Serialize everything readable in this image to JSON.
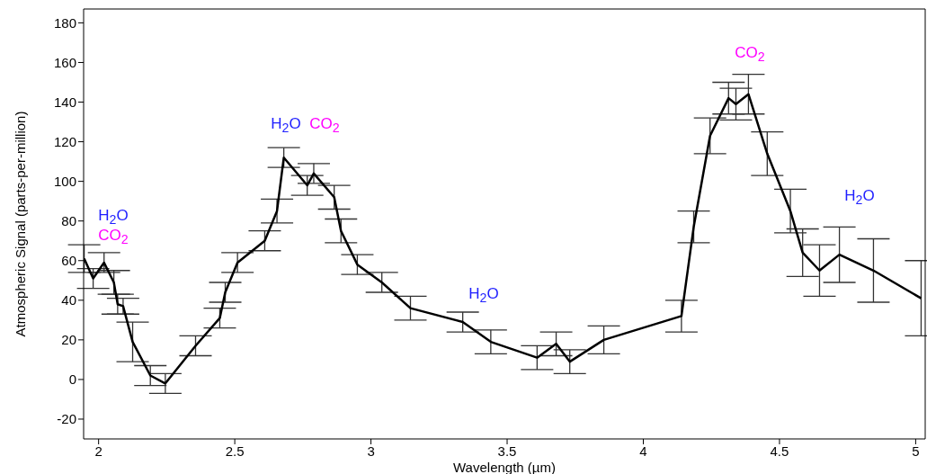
{
  "chart_data": {
    "type": "line",
    "xlabel": "Wavelength (µm)",
    "ylabel": "Atmospheric Signal (parts-per-million)",
    "x": [
      1.947,
      1.98,
      2.02,
      2.056,
      2.07,
      2.09,
      2.125,
      2.19,
      2.245,
      2.356,
      2.445,
      2.465,
      2.51,
      2.61,
      2.655,
      2.68,
      2.766,
      2.79,
      2.865,
      2.89,
      2.95,
      3.04,
      3.145,
      3.337,
      3.44,
      3.61,
      3.68,
      3.73,
      3.855,
      4.14,
      4.185,
      4.245,
      4.313,
      4.34,
      4.386,
      4.455,
      4.54,
      4.585,
      4.647,
      4.72,
      4.845,
      5.02
    ],
    "series": [
      {
        "color": "#000000",
        "values": [
          61,
          51,
          59,
          49,
          38,
          37,
          19,
          2,
          -2,
          17,
          31,
          44,
          59,
          70,
          85,
          112,
          98,
          104,
          92,
          75,
          58,
          49,
          36,
          29,
          19,
          11,
          18,
          9,
          20,
          32,
          77,
          123,
          142,
          139,
          144,
          114,
          85,
          64,
          55,
          63,
          55,
          41
        ],
        "errors": [
          7,
          5,
          5,
          6,
          5,
          4,
          10,
          5,
          5,
          5,
          5,
          5,
          5,
          5,
          6,
          5,
          5,
          5,
          6,
          6,
          5,
          5,
          6,
          5,
          6,
          6,
          6,
          6,
          7,
          8,
          8,
          9,
          8,
          8,
          10,
          11,
          11,
          12,
          13,
          14,
          16,
          19
        ]
      }
    ],
    "xlim": [
      1.945,
      5.035
    ],
    "ylim": [
      -30,
      187
    ],
    "xticks": [
      2,
      2.5,
      3,
      3.5,
      4,
      4.5,
      5
    ],
    "yticks": [
      -20,
      0,
      20,
      40,
      60,
      80,
      100,
      120,
      140,
      160,
      180
    ],
    "grid": false,
    "marker": "none",
    "line_style": "solid",
    "annotations": [
      "H$_{2}$O",
      "CO$_{2}$",
      "H$_{2}$O",
      "CO$_{2}$",
      "H$_{2}$O",
      "CO$_{2}$",
      "H$_{2}$O"
    ]
  }
}
